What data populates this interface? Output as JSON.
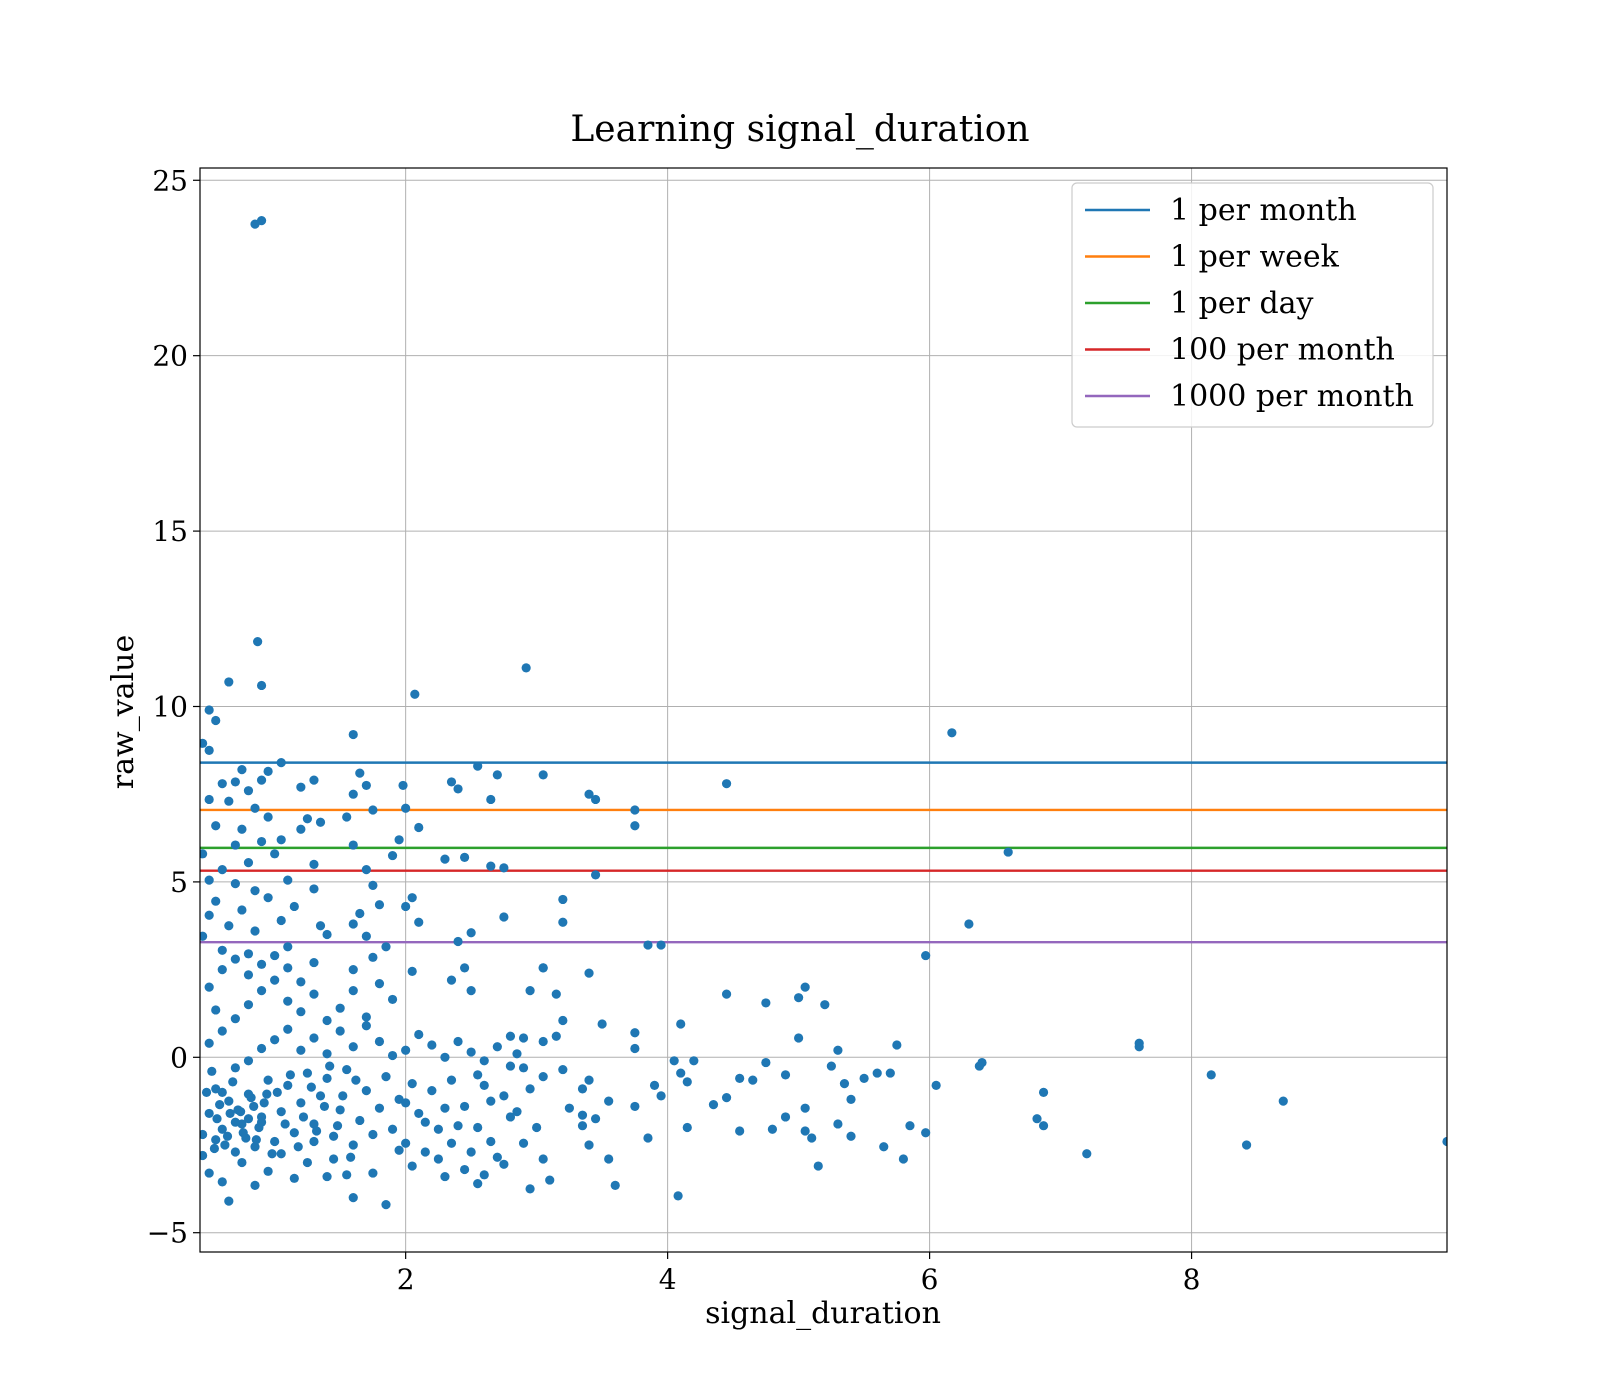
{
  "chart_data": {
    "type": "scatter",
    "title": "Learning signal_duration",
    "xlabel": "signal_duration",
    "ylabel": "raw_value",
    "xlim": [
      0.43,
      9.95
    ],
    "ylim": [
      -5.55,
      25.35
    ],
    "xticks": [
      2,
      4,
      6,
      8
    ],
    "xtick_labels": [
      "2",
      "4",
      "6",
      "8"
    ],
    "yticks": [
      -5,
      0,
      5,
      10,
      15,
      20,
      25
    ],
    "ytick_labels": [
      "−5",
      "0",
      "5",
      "10",
      "15",
      "20",
      "25"
    ],
    "grid": true,
    "legend_position": "upper right",
    "point_color": "#1f77b4",
    "reference_lines": [
      {
        "name": "1 per month",
        "y": 8.4,
        "color": "#1f77b4"
      },
      {
        "name": "1 per week",
        "y": 7.05,
        "color": "#ff7f0e"
      },
      {
        "name": "1 per day",
        "y": 5.97,
        "color": "#2ca02c"
      },
      {
        "name": "100 per month",
        "y": 5.32,
        "color": "#d62728"
      },
      {
        "name": "1000 per month",
        "y": 3.28,
        "color": "#9467bd"
      }
    ],
    "points": [
      [
        0.85,
        23.75
      ],
      [
        0.9,
        23.85
      ],
      [
        0.87,
        11.85
      ],
      [
        0.9,
        10.6
      ],
      [
        0.65,
        10.7
      ],
      [
        0.5,
        9.9
      ],
      [
        0.55,
        9.6
      ],
      [
        0.45,
        8.95
      ],
      [
        0.5,
        8.75
      ],
      [
        0.75,
        8.2
      ],
      [
        1.05,
        8.4
      ],
      [
        0.95,
        8.15
      ],
      [
        0.6,
        7.8
      ],
      [
        0.7,
        7.85
      ],
      [
        0.8,
        7.6
      ],
      [
        0.9,
        7.9
      ],
      [
        1.2,
        7.7
      ],
      [
        1.3,
        7.9
      ],
      [
        0.5,
        7.35
      ],
      [
        0.65,
        7.3
      ],
      [
        0.85,
        7.1
      ],
      [
        0.55,
        6.6
      ],
      [
        0.75,
        6.5
      ],
      [
        0.95,
        6.85
      ],
      [
        1.25,
        6.8
      ],
      [
        1.35,
        6.7
      ],
      [
        0.7,
        6.05
      ],
      [
        0.9,
        6.15
      ],
      [
        1.05,
        6.2
      ],
      [
        1.2,
        6.5
      ],
      [
        0.45,
        5.8
      ],
      [
        0.6,
        5.35
      ],
      [
        0.8,
        5.55
      ],
      [
        1.0,
        5.8
      ],
      [
        1.3,
        5.5
      ],
      [
        0.5,
        5.05
      ],
      [
        0.7,
        4.95
      ],
      [
        0.85,
        4.75
      ],
      [
        1.1,
        5.05
      ],
      [
        1.3,
        4.8
      ],
      [
        0.55,
        4.45
      ],
      [
        0.75,
        4.2
      ],
      [
        0.95,
        4.55
      ],
      [
        1.15,
        4.3
      ],
      [
        0.5,
        4.05
      ],
      [
        0.65,
        3.75
      ],
      [
        0.85,
        3.6
      ],
      [
        1.05,
        3.9
      ],
      [
        1.35,
        3.75
      ],
      [
        1.6,
        3.8
      ],
      [
        0.45,
        3.45
      ],
      [
        0.6,
        3.05
      ],
      [
        0.8,
        2.95
      ],
      [
        1.1,
        3.15
      ],
      [
        1.4,
        3.5
      ],
      [
        1.6,
        9.2
      ],
      [
        1.65,
        8.1
      ],
      [
        1.7,
        7.75
      ],
      [
        1.6,
        7.5
      ],
      [
        1.75,
        7.05
      ],
      [
        1.55,
        6.85
      ],
      [
        1.6,
        6.05
      ],
      [
        1.7,
        5.35
      ],
      [
        1.75,
        4.9
      ],
      [
        1.8,
        4.35
      ],
      [
        1.65,
        4.1
      ],
      [
        1.7,
        3.45
      ],
      [
        1.85,
        3.15
      ],
      [
        1.75,
        2.85
      ],
      [
        1.6,
        2.5
      ],
      [
        2.07,
        10.35
      ],
      [
        1.98,
        7.75
      ],
      [
        2.0,
        7.1
      ],
      [
        2.1,
        6.55
      ],
      [
        1.95,
        6.2
      ],
      [
        1.9,
        5.75
      ],
      [
        2.05,
        4.55
      ],
      [
        2.0,
        4.3
      ],
      [
        2.1,
        3.85
      ],
      [
        2.05,
        2.45
      ],
      [
        2.35,
        7.85
      ],
      [
        2.4,
        7.65
      ],
      [
        2.55,
        8.3
      ],
      [
        2.7,
        8.05
      ],
      [
        2.65,
        7.35
      ],
      [
        2.3,
        5.65
      ],
      [
        2.45,
        5.7
      ],
      [
        2.65,
        5.45
      ],
      [
        2.75,
        5.4
      ],
      [
        2.4,
        3.3
      ],
      [
        2.5,
        3.55
      ],
      [
        2.75,
        4.0
      ],
      [
        2.45,
        2.55
      ],
      [
        2.35,
        2.2
      ],
      [
        2.5,
        1.9
      ],
      [
        2.92,
        11.1
      ],
      [
        3.05,
        8.05
      ],
      [
        3.4,
        7.5
      ],
      [
        3.45,
        7.35
      ],
      [
        3.75,
        7.05
      ],
      [
        3.75,
        6.6
      ],
      [
        3.45,
        5.2
      ],
      [
        3.2,
        4.5
      ],
      [
        3.2,
        3.85
      ],
      [
        3.05,
        2.55
      ],
      [
        3.4,
        2.4
      ],
      [
        3.85,
        3.2
      ],
      [
        3.95,
        3.2
      ],
      [
        3.15,
        1.8
      ],
      [
        3.5,
        0.95
      ],
      [
        3.2,
        1.05
      ],
      [
        4.45,
        7.8
      ],
      [
        4.45,
        1.8
      ],
      [
        4.75,
        1.55
      ],
      [
        5.0,
        1.7
      ],
      [
        5.05,
        2.0
      ],
      [
        5.2,
        1.5
      ],
      [
        5.0,
        0.55
      ],
      [
        4.1,
        0.95
      ],
      [
        3.75,
        0.7
      ],
      [
        6.17,
        9.25
      ],
      [
        6.6,
        5.85
      ],
      [
        6.3,
        3.8
      ],
      [
        5.97,
        2.9
      ],
      [
        5.75,
        0.35
      ],
      [
        6.4,
        -0.15
      ],
      [
        6.38,
        -0.25
      ],
      [
        6.05,
        -0.8
      ],
      [
        7.6,
        0.4
      ],
      [
        7.6,
        0.3
      ],
      [
        8.15,
        -0.5
      ],
      [
        6.87,
        -1.0
      ],
      [
        6.82,
        -1.75
      ],
      [
        6.87,
        -1.95
      ],
      [
        7.2,
        -2.75
      ],
      [
        8.7,
        -1.25
      ],
      [
        8.42,
        -2.5
      ],
      [
        9.95,
        -2.4
      ],
      [
        5.97,
        -2.15
      ],
      [
        5.8,
        -2.9
      ],
      [
        5.65,
        -2.55
      ],
      [
        5.85,
        -1.95
      ],
      [
        5.3,
        -1.9
      ],
      [
        5.4,
        -2.25
      ],
      [
        5.05,
        -2.1
      ],
      [
        5.1,
        -2.3
      ],
      [
        5.15,
        -3.1
      ],
      [
        5.05,
        -1.45
      ],
      [
        5.35,
        -0.75
      ],
      [
        5.4,
        -1.2
      ],
      [
        5.5,
        -0.6
      ],
      [
        5.6,
        -0.45
      ],
      [
        5.7,
        -0.45
      ],
      [
        5.3,
        0.2
      ],
      [
        5.25,
        -0.25
      ],
      [
        4.75,
        -0.15
      ],
      [
        4.9,
        -0.5
      ],
      [
        4.65,
        -0.65
      ],
      [
        4.55,
        -0.6
      ],
      [
        4.45,
        -1.15
      ],
      [
        4.35,
        -1.35
      ],
      [
        4.55,
        -2.1
      ],
      [
        4.8,
        -2.05
      ],
      [
        4.9,
        -1.7
      ],
      [
        4.15,
        -2.0
      ],
      [
        4.08,
        -3.95
      ],
      [
        3.85,
        -2.3
      ],
      [
        3.75,
        -1.4
      ],
      [
        3.9,
        -0.8
      ],
      [
        3.95,
        -1.1
      ],
      [
        4.05,
        -0.1
      ],
      [
        4.1,
        -0.45
      ],
      [
        4.15,
        -0.7
      ],
      [
        4.2,
        -0.1
      ],
      [
        3.75,
        0.25
      ],
      [
        3.6,
        -3.65
      ],
      [
        3.55,
        -2.9
      ],
      [
        3.4,
        -2.5
      ],
      [
        3.35,
        -1.95
      ],
      [
        3.45,
        -1.75
      ],
      [
        3.35,
        -1.65
      ],
      [
        3.25,
        -1.45
      ],
      [
        3.35,
        -0.9
      ],
      [
        3.55,
        -1.25
      ],
      [
        3.4,
        -0.65
      ],
      [
        3.2,
        -0.35
      ],
      [
        3.05,
        -0.55
      ],
      [
        3.0,
        -2.0
      ],
      [
        3.1,
        -3.5
      ],
      [
        3.05,
        -2.9
      ],
      [
        2.95,
        -3.75
      ],
      [
        2.9,
        -2.45
      ],
      [
        2.85,
        -1.55
      ],
      [
        2.8,
        -1.7
      ],
      [
        2.75,
        -1.1
      ],
      [
        2.95,
        -0.9
      ],
      [
        2.9,
        -0.3
      ],
      [
        2.85,
        0.1
      ],
      [
        2.8,
        0.6
      ],
      [
        2.9,
        0.55
      ],
      [
        3.15,
        0.6
      ],
      [
        3.05,
        0.45
      ],
      [
        2.95,
        1.9
      ],
      [
        3.05,
        2.55
      ],
      [
        2.6,
        -0.8
      ],
      [
        2.45,
        -3.2
      ],
      [
        2.55,
        -3.6
      ],
      [
        2.6,
        -3.35
      ],
      [
        2.7,
        -2.85
      ],
      [
        2.75,
        -3.05
      ],
      [
        2.5,
        -2.7
      ],
      [
        2.35,
        -2.45
      ],
      [
        2.3,
        -3.4
      ],
      [
        2.25,
        -2.9
      ],
      [
        2.15,
        -2.7
      ],
      [
        2.05,
        -3.1
      ],
      [
        2.0,
        -2.45
      ],
      [
        1.85,
        -4.2
      ],
      [
        1.75,
        -3.3
      ],
      [
        1.6,
        -4.0
      ],
      [
        1.55,
        -3.35
      ],
      [
        1.45,
        -2.9
      ],
      [
        1.4,
        -3.4
      ],
      [
        1.3,
        -2.4
      ],
      [
        1.25,
        -3.0
      ],
      [
        1.15,
        -3.45
      ],
      [
        1.05,
        -2.75
      ],
      [
        0.95,
        -3.25
      ],
      [
        0.85,
        -3.65
      ],
      [
        0.75,
        -3.0
      ],
      [
        0.65,
        -4.1
      ],
      [
        0.6,
        -3.55
      ],
      [
        0.5,
        -3.3
      ],
      [
        0.45,
        -2.8
      ],
      [
        0.55,
        -2.35
      ],
      [
        2.4,
        -1.95
      ],
      [
        2.3,
        -1.45
      ],
      [
        2.2,
        -0.95
      ],
      [
        2.1,
        -1.6
      ],
      [
        2.05,
        -0.75
      ],
      [
        1.95,
        -1.2
      ],
      [
        1.9,
        -2.05
      ],
      [
        1.85,
        -0.55
      ],
      [
        1.8,
        -1.45
      ],
      [
        1.75,
        -2.2
      ],
      [
        1.7,
        -0.95
      ],
      [
        1.65,
        -1.8
      ],
      [
        1.6,
        -2.5
      ],
      [
        1.55,
        -0.35
      ],
      [
        1.5,
        -1.5
      ],
      [
        1.45,
        -2.25
      ],
      [
        1.4,
        -0.6
      ],
      [
        1.35,
        -1.1
      ],
      [
        1.3,
        -1.9
      ],
      [
        1.25,
        -0.45
      ],
      [
        1.2,
        -1.3
      ],
      [
        1.15,
        -2.15
      ],
      [
        1.1,
        -0.8
      ],
      [
        1.05,
        -1.55
      ],
      [
        1.0,
        -2.4
      ],
      [
        0.95,
        -0.65
      ],
      [
        0.9,
        -1.7
      ],
      [
        0.85,
        -2.55
      ],
      [
        0.8,
        -1.05
      ],
      [
        0.75,
        -1.9
      ],
      [
        0.7,
        -2.7
      ],
      [
        0.65,
        -1.25
      ],
      [
        0.6,
        -2.05
      ],
      [
        0.55,
        -0.9
      ],
      [
        0.5,
        -1.6
      ],
      [
        0.45,
        -2.2
      ],
      [
        0.48,
        -1.0
      ],
      [
        0.52,
        -0.4
      ],
      [
        0.58,
        -1.35
      ],
      [
        0.62,
        -2.5
      ],
      [
        0.68,
        -0.7
      ],
      [
        0.72,
        -1.5
      ],
      [
        0.78,
        -2.3
      ],
      [
        0.82,
        -1.15
      ],
      [
        0.88,
        -2.0
      ],
      [
        0.92,
        -1.3
      ],
      [
        0.98,
        -2.75
      ],
      [
        1.02,
        -1.0
      ],
      [
        1.08,
        -1.9
      ],
      [
        1.12,
        -0.5
      ],
      [
        1.18,
        -2.55
      ],
      [
        1.22,
        -1.7
      ],
      [
        1.28,
        -0.85
      ],
      [
        1.32,
        -2.1
      ],
      [
        1.38,
        -1.4
      ],
      [
        1.42,
        -0.25
      ],
      [
        1.48,
        -1.95
      ],
      [
        1.52,
        -1.1
      ],
      [
        1.58,
        -2.85
      ],
      [
        1.62,
        -0.65
      ],
      [
        0.7,
        -1.85
      ],
      [
        0.74,
        -1.55
      ],
      [
        0.76,
        -2.15
      ],
      [
        0.8,
        -1.75
      ],
      [
        0.84,
        -1.4
      ],
      [
        0.86,
        -2.35
      ],
      [
        0.9,
        -1.85
      ],
      [
        0.94,
        -1.05
      ],
      [
        0.66,
        -1.6
      ],
      [
        0.64,
        -2.25
      ],
      [
        0.56,
        -1.75
      ],
      [
        0.54,
        -2.6
      ],
      [
        0.6,
        -1.0
      ],
      [
        0.7,
        -0.3
      ],
      [
        0.8,
        -0.1
      ],
      [
        0.9,
        0.25
      ],
      [
        1.0,
        0.5
      ],
      [
        1.1,
        0.8
      ],
      [
        1.2,
        0.2
      ],
      [
        1.3,
        0.55
      ],
      [
        1.4,
        0.1
      ],
      [
        1.5,
        0.75
      ],
      [
        1.6,
        0.3
      ],
      [
        1.7,
        0.9
      ],
      [
        1.8,
        0.45
      ],
      [
        1.9,
        0.05
      ],
      [
        2.0,
        0.2
      ],
      [
        2.1,
        0.65
      ],
      [
        2.2,
        0.35
      ],
      [
        2.3,
        0.0
      ],
      [
        2.4,
        0.45
      ],
      [
        2.5,
        0.15
      ],
      [
        2.6,
        -0.1
      ],
      [
        2.7,
        0.3
      ],
      [
        2.8,
        -0.25
      ],
      [
        0.5,
        0.4
      ],
      [
        0.6,
        0.75
      ],
      [
        0.7,
        1.1
      ],
      [
        0.8,
        1.5
      ],
      [
        0.9,
        1.9
      ],
      [
        1.0,
        2.2
      ],
      [
        1.1,
        1.6
      ],
      [
        1.2,
        1.3
      ],
      [
        1.3,
        1.8
      ],
      [
        1.4,
        1.05
      ],
      [
        1.5,
        1.4
      ],
      [
        1.6,
        1.9
      ],
      [
        1.7,
        1.15
      ],
      [
        1.8,
        2.1
      ],
      [
        1.9,
        1.65
      ],
      [
        0.5,
        2.0
      ],
      [
        0.6,
        2.5
      ],
      [
        0.7,
        2.8
      ],
      [
        0.8,
        2.35
      ],
      [
        0.9,
        2.65
      ],
      [
        1.0,
        2.9
      ],
      [
        1.1,
        2.55
      ],
      [
        1.2,
        2.15
      ],
      [
        1.3,
        2.7
      ],
      [
        0.55,
        1.35
      ],
      [
        2.25,
        -2.05
      ],
      [
        2.45,
        -1.4
      ],
      [
        2.55,
        -2.0
      ],
      [
        2.65,
        -1.25
      ],
      [
        2.15,
        -1.85
      ],
      [
        2.35,
        -0.65
      ],
      [
        2.55,
        -0.5
      ],
      [
        2.65,
        -2.4
      ],
      [
        2.0,
        -1.3
      ],
      [
        1.95,
        -2.65
      ]
    ]
  }
}
